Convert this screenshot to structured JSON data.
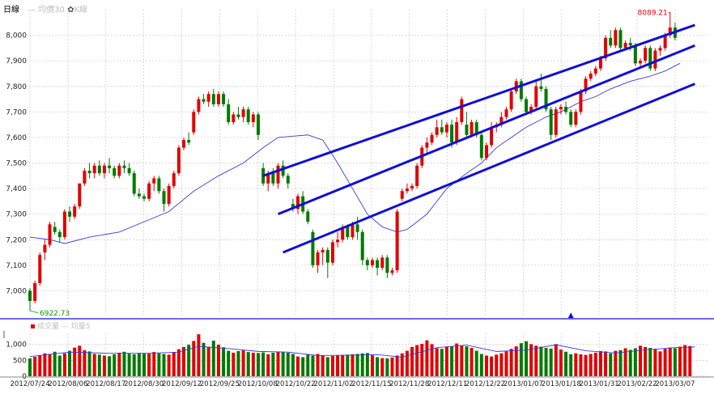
{
  "header": {
    "title": "日線",
    "ma_legend": "— 均價30",
    "kline_legend": "K線",
    "volume_legend": "成交量",
    "volume_ma_legend": "— 均量5"
  },
  "colors": {
    "up": "#e00000",
    "down": "#007a00",
    "channel": "#1010d0",
    "ma": "#3a3ad6",
    "grid": "#c8c8c8",
    "max_label": "#e00000",
    "min_label": "#00a000"
  },
  "chart_data": [
    {
      "type": "candlestick",
      "title": "",
      "ylim": [
        6900,
        8100
      ],
      "yticks": [
        7000,
        7100,
        7200,
        7300,
        7400,
        7500,
        7600,
        7700,
        7800,
        7900,
        8000
      ],
      "ytick_labels": [
        "7,000",
        "7,100",
        "7,200",
        "7,300",
        "7,400",
        "7,500",
        "7,600",
        "7,700",
        "7,800",
        "7,900",
        "8,000"
      ],
      "max_annotation": "8089.21",
      "min_annotation": "6922.73",
      "annotations": [
        "▲"
      ],
      "candles": [
        [
          7000,
          7010,
          6922.73,
          6960
        ],
        [
          6960,
          7040,
          6950,
          7030
        ],
        [
          7030,
          7150,
          7020,
          7140
        ],
        [
          7150,
          7200,
          7120,
          7180
        ],
        [
          7180,
          7270,
          7170,
          7260
        ],
        [
          7250,
          7270,
          7220,
          7230
        ],
        [
          7230,
          7240,
          7190,
          7210
        ],
        [
          7210,
          7320,
          7200,
          7310
        ],
        [
          7310,
          7330,
          7270,
          7290
        ],
        [
          7290,
          7340,
          7280,
          7330
        ],
        [
          7330,
          7420,
          7320,
          7420
        ],
        [
          7420,
          7480,
          7410,
          7470
        ],
        [
          7470,
          7500,
          7440,
          7460
        ],
        [
          7460,
          7500,
          7440,
          7490
        ],
        [
          7490,
          7510,
          7450,
          7460
        ],
        [
          7460,
          7500,
          7440,
          7490
        ],
        [
          7490,
          7520,
          7460,
          7480
        ],
        [
          7480,
          7490,
          7440,
          7450
        ],
        [
          7450,
          7500,
          7440,
          7490
        ],
        [
          7490,
          7510,
          7460,
          7480
        ],
        [
          7480,
          7500,
          7450,
          7460
        ],
        [
          7460,
          7470,
          7370,
          7380
        ],
        [
          7380,
          7400,
          7360,
          7370
        ],
        [
          7370,
          7380,
          7350,
          7360
        ],
        [
          7360,
          7430,
          7350,
          7420
        ],
        [
          7420,
          7450,
          7390,
          7440
        ],
        [
          7440,
          7450,
          7380,
          7390
        ],
        [
          7390,
          7400,
          7310,
          7340
        ],
        [
          7340,
          7420,
          7330,
          7410
        ],
        [
          7410,
          7470,
          7400,
          7460
        ],
        [
          7460,
          7570,
          7450,
          7560
        ],
        [
          7560,
          7600,
          7550,
          7590
        ],
        [
          7590,
          7620,
          7570,
          7580
        ],
        [
          7620,
          7710,
          7610,
          7700
        ],
        [
          7700,
          7760,
          7690,
          7750
        ],
        [
          7750,
          7770,
          7730,
          7740
        ],
        [
          7740,
          7780,
          7720,
          7770
        ],
        [
          7770,
          7790,
          7720,
          7730
        ],
        [
          7730,
          7780,
          7720,
          7770
        ],
        [
          7770,
          7780,
          7720,
          7730
        ],
        [
          7730,
          7750,
          7650,
          7660
        ],
        [
          7660,
          7700,
          7650,
          7690
        ],
        [
          7690,
          7720,
          7670,
          7680
        ],
        [
          7680,
          7720,
          7660,
          7710
        ],
        [
          7710,
          7720,
          7650,
          7660
        ],
        [
          7660,
          7700,
          7640,
          7690
        ],
        [
          7690,
          7700,
          7590,
          7610
        ],
        [
          7480,
          7500,
          7410,
          7420
        ],
        [
          7420,
          7470,
          7390,
          7460
        ],
        [
          7460,
          7480,
          7410,
          7420
        ],
        [
          7420,
          7500,
          7400,
          7490
        ],
        [
          7490,
          7510,
          7440,
          7450
        ],
        [
          7450,
          7460,
          7400,
          7420
        ],
        [
          7340,
          7360,
          7310,
          7320
        ],
        [
          7320,
          7380,
          7300,
          7370
        ],
        [
          7370,
          7390,
          7300,
          7310
        ],
        [
          7310,
          7320,
          7260,
          7270
        ],
        [
          7230,
          7240,
          7090,
          7100
        ],
        [
          7100,
          7160,
          7070,
          7150
        ],
        [
          7150,
          7170,
          7100,
          7160
        ],
        [
          7160,
          7170,
          7050,
          7110
        ],
        [
          7110,
          7200,
          7100,
          7190
        ],
        [
          7190,
          7230,
          7170,
          7200
        ],
        [
          7200,
          7260,
          7190,
          7250
        ],
        [
          7250,
          7260,
          7200,
          7210
        ],
        [
          7210,
          7270,
          7200,
          7260
        ],
        [
          7260,
          7290,
          7200,
          7230
        ],
        [
          7230,
          7240,
          7100,
          7120
        ],
        [
          7120,
          7130,
          7080,
          7100
        ],
        [
          7100,
          7130,
          7090,
          7120
        ],
        [
          7120,
          7130,
          7060,
          7090
        ],
        [
          7090,
          7140,
          7080,
          7130
        ],
        [
          7130,
          7140,
          7050,
          7070
        ],
        [
          7070,
          7090,
          7060,
          7080
        ],
        [
          7080,
          7320,
          7070,
          7310
        ],
        [
          7360,
          7400,
          7350,
          7390
        ],
        [
          7390,
          7420,
          7380,
          7400
        ],
        [
          7400,
          7420,
          7390,
          7410
        ],
        [
          7410,
          7500,
          7400,
          7490
        ],
        [
          7490,
          7570,
          7480,
          7560
        ],
        [
          7560,
          7600,
          7540,
          7580
        ],
        [
          7580,
          7620,
          7570,
          7610
        ],
        [
          7610,
          7670,
          7600,
          7640
        ],
        [
          7640,
          7670,
          7610,
          7620
        ],
        [
          7620,
          7660,
          7600,
          7650
        ],
        [
          7650,
          7670,
          7560,
          7580
        ],
        [
          7580,
          7680,
          7570,
          7660
        ],
        [
          7660,
          7760,
          7650,
          7750
        ],
        [
          7650,
          7700,
          7600,
          7610
        ],
        [
          7610,
          7670,
          7600,
          7660
        ],
        [
          7660,
          7670,
          7600,
          7610
        ],
        [
          7610,
          7620,
          7510,
          7520
        ],
        [
          7520,
          7580,
          7510,
          7570
        ],
        [
          7570,
          7660,
          7560,
          7640
        ],
        [
          7640,
          7660,
          7620,
          7650
        ],
        [
          7650,
          7700,
          7640,
          7680
        ],
        [
          7680,
          7720,
          7670,
          7710
        ],
        [
          7710,
          7790,
          7700,
          7780
        ],
        [
          7780,
          7830,
          7770,
          7820
        ],
        [
          7820,
          7830,
          7740,
          7750
        ],
        [
          7750,
          7760,
          7690,
          7700
        ],
        [
          7700,
          7730,
          7690,
          7720
        ],
        [
          7720,
          7820,
          7710,
          7800
        ],
        [
          7800,
          7850,
          7780,
          7790
        ],
        [
          7790,
          7800,
          7700,
          7710
        ],
        [
          7710,
          7720,
          7590,
          7610
        ],
        [
          7610,
          7720,
          7600,
          7710
        ],
        [
          7710,
          7730,
          7690,
          7720
        ],
        [
          7720,
          7740,
          7690,
          7700
        ],
        [
          7700,
          7710,
          7640,
          7650
        ],
        [
          7650,
          7710,
          7640,
          7700
        ],
        [
          7700,
          7790,
          7690,
          7780
        ],
        [
          7780,
          7840,
          7770,
          7830
        ],
        [
          7830,
          7860,
          7820,
          7850
        ],
        [
          7850,
          7880,
          7840,
          7870
        ],
        [
          7870,
          7920,
          7860,
          7910
        ],
        [
          7910,
          8000,
          7900,
          7990
        ],
        [
          7990,
          8020,
          7950,
          7960
        ],
        [
          7960,
          8030,
          7950,
          8020
        ],
        [
          8020,
          8030,
          7940,
          7950
        ],
        [
          7950,
          7980,
          7940,
          7970
        ],
        [
          7970,
          7990,
          7940,
          7960
        ],
        [
          7960,
          7970,
          7880,
          7890
        ],
        [
          7890,
          7910,
          7870,
          7900
        ],
        [
          7900,
          7960,
          7890,
          7950
        ],
        [
          7950,
          7960,
          7860,
          7870
        ],
        [
          7870,
          7950,
          7860,
          7940
        ],
        [
          7940,
          7960,
          7920,
          7950
        ],
        [
          7950,
          8010,
          7940,
          8000
        ],
        [
          8000,
          8089.21,
          7990,
          8030
        ],
        [
          8030,
          8050,
          7980,
          7990
        ]
      ],
      "ma": [
        [
          0,
          7210
        ],
        [
          4,
          7200
        ],
        [
          7,
          7185
        ],
        [
          12,
          7210
        ],
        [
          18,
          7230
        ],
        [
          23,
          7270
        ],
        [
          28,
          7310
        ],
        [
          33,
          7390
        ],
        [
          38,
          7450
        ],
        [
          43,
          7500
        ],
        [
          47,
          7560
        ],
        [
          50,
          7600
        ],
        [
          53,
          7605
        ],
        [
          56,
          7610
        ],
        [
          59,
          7590
        ],
        [
          62,
          7500
        ],
        [
          65,
          7400
        ],
        [
          68,
          7300
        ],
        [
          71,
          7250
        ],
        [
          74,
          7230
        ],
        [
          76,
          7240
        ],
        [
          80,
          7300
        ],
        [
          84,
          7400
        ],
        [
          88,
          7460
        ],
        [
          91,
          7500
        ],
        [
          94,
          7560
        ],
        [
          97,
          7600
        ],
        [
          100,
          7640
        ],
        [
          104,
          7680
        ],
        [
          107,
          7700
        ],
        [
          111,
          7740
        ],
        [
          114,
          7760
        ],
        [
          117,
          7790
        ],
        [
          121,
          7820
        ],
        [
          125,
          7840
        ],
        [
          128,
          7860
        ],
        [
          131,
          7890
        ]
      ],
      "channel_lines": [
        {
          "from": [
            47,
            7450
          ],
          "to": [
            134,
            8040
          ]
        },
        {
          "from": [
            50,
            7300
          ],
          "to": [
            134,
            7960
          ]
        },
        {
          "from": [
            51,
            7150
          ],
          "to": [
            134,
            7810
          ]
        }
      ],
      "x_date_labels": [
        "2012/07/24",
        "2012/08/06",
        "2012/08/17",
        "2012/08/30",
        "2012/09/12",
        "2012/09/25",
        "2012/10/08",
        "2012/10/22",
        "2012/11/02",
        "2012/11/15",
        "2012/11/28",
        "2012/12/11",
        "2012/12/22",
        "2013/01/07",
        "2013/01/18",
        "2013/01/31",
        "2013/02/22",
        "2013/03/07"
      ]
    },
    {
      "type": "bar",
      "title": "",
      "ylim": [
        0,
        1350
      ],
      "yticks": [
        0,
        500,
        1000
      ],
      "ytick_labels": [
        "0",
        "500",
        "1,000"
      ],
      "volumes": [
        560,
        610,
        660,
        720,
        700,
        770,
        650,
        720,
        800,
        900,
        960,
        820,
        780,
        700,
        680,
        650,
        630,
        690,
        740,
        770,
        710,
        690,
        730,
        720,
        710,
        760,
        720,
        700,
        680,
        750,
        850,
        920,
        990,
        1110,
        1320,
        1050,
        930,
        1120,
        990,
        910,
        800,
        740,
        790,
        810,
        760,
        740,
        730,
        750,
        690,
        740,
        770,
        760,
        740,
        700,
        620,
        600,
        680,
        650,
        700,
        650,
        600,
        640,
        650,
        670,
        680,
        690,
        700,
        720,
        730,
        660,
        600,
        570,
        560,
        590,
        650,
        720,
        800,
        920,
        980,
        1020,
        1130,
        1010,
        880,
        860,
        930,
        940,
        1030,
        970,
        940,
        890,
        800,
        700,
        650,
        620,
        680,
        720,
        780,
        860,
        940,
        1040,
        1100,
        1010,
        960,
        930,
        890,
        870,
        1010,
        840,
        770,
        690,
        720,
        690,
        670,
        700,
        740,
        790,
        780,
        720,
        800,
        820,
        880,
        830,
        880,
        960,
        920,
        890,
        840,
        780,
        860,
        900,
        880,
        930,
        980,
        950
      ],
      "ma": [
        [
          0,
          620
        ],
        [
          8,
          760
        ],
        [
          16,
          720
        ],
        [
          24,
          720
        ],
        [
          30,
          760
        ],
        [
          34,
          940
        ],
        [
          40,
          870
        ],
        [
          46,
          780
        ],
        [
          52,
          760
        ],
        [
          58,
          650
        ],
        [
          64,
          660
        ],
        [
          70,
          680
        ],
        [
          75,
          600
        ],
        [
          82,
          900
        ],
        [
          88,
          980
        ],
        [
          94,
          780
        ],
        [
          100,
          820
        ],
        [
          106,
          990
        ],
        [
          112,
          800
        ],
        [
          118,
          730
        ],
        [
          124,
          830
        ],
        [
          130,
          900
        ],
        [
          134,
          920
        ]
      ]
    }
  ]
}
